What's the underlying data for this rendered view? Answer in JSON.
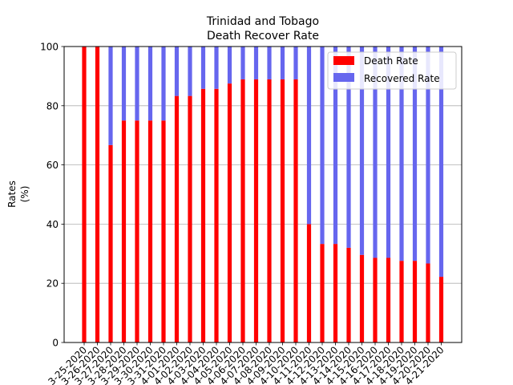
{
  "chart_data": {
    "type": "bar",
    "stacked": true,
    "title_lines": [
      "Trinidad and Tobago",
      "Death Recover Rate"
    ],
    "xlabel": "",
    "ylabel_lines": [
      "Rates",
      "(%)"
    ],
    "ylim": [
      0,
      100
    ],
    "yticks": [
      0,
      20,
      40,
      60,
      80,
      100
    ],
    "grid": "y",
    "legend_position": "top-right",
    "categories": [
      "3-25-2020",
      "3-26-2020",
      "3-27-2020",
      "3-28-2020",
      "3-29-2020",
      "3-30-2020",
      "3-31-2020",
      "4-01-2020",
      "4-02-2020",
      "4-03-2020",
      "4-04-2020",
      "4-05-2020",
      "4-06-2020",
      "4-07-2020",
      "4-08-2020",
      "4-09-2020",
      "4-10-2020",
      "4-11-2020",
      "4-12-2020",
      "4-13-2020",
      "4-14-2020",
      "4-15-2020",
      "4-16-2020",
      "4-17-2020",
      "4-18-2020",
      "4-19-2020",
      "4-20-2020",
      "4-21-2020"
    ],
    "series": [
      {
        "name": "Death Rate",
        "color": "#ff0000",
        "values": [
          100,
          100,
          66.7,
          75,
          75,
          75,
          75,
          83.3,
          83.3,
          85.7,
          85.7,
          87.5,
          88.9,
          88.9,
          88.9,
          88.9,
          88.9,
          40,
          33.3,
          33.3,
          32,
          29.6,
          28.6,
          28.6,
          27.6,
          27.6,
          26.7,
          22.2
        ]
      },
      {
        "name": "Recovered Rate",
        "color": "#6666ee",
        "values": [
          0,
          0,
          33.3,
          25,
          25,
          25,
          25,
          16.7,
          16.7,
          14.3,
          14.3,
          12.5,
          11.1,
          11.1,
          11.1,
          11.1,
          11.1,
          60,
          66.7,
          66.7,
          68,
          70.4,
          71.4,
          71.4,
          72.4,
          72.4,
          73.3,
          77.8
        ]
      }
    ]
  }
}
